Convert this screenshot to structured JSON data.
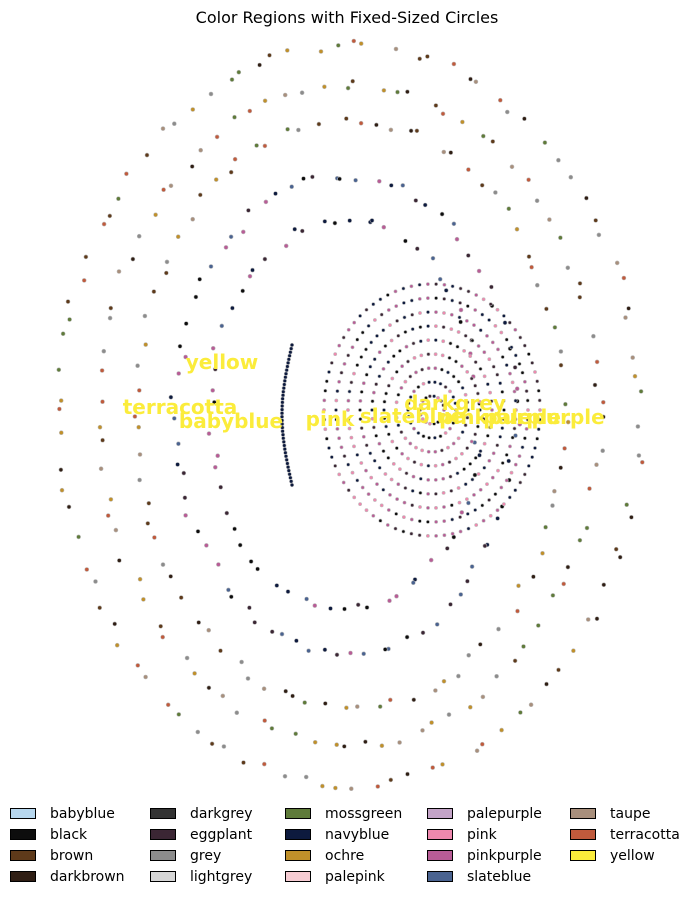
{
  "chart_data": {
    "type": "scatter",
    "title": "Color Regions with Fixed-Sized Circles",
    "xlabel": "",
    "ylabel": "",
    "axes_visible": false,
    "legend_location": "bottom",
    "region_labels": [
      {
        "text": "yellow"
      },
      {
        "text": "terracotta"
      },
      {
        "text": "babyblue"
      },
      {
        "text": "pink"
      },
      {
        "text": "slateblue"
      },
      {
        "text": "darkgrey"
      },
      {
        "text": "palepurple"
      },
      {
        "text": "pinkpurple"
      }
    ],
    "legend": [
      {
        "name": "babyblue",
        "color": "#b7d7ee"
      },
      {
        "name": "black",
        "color": "#0d0d0d"
      },
      {
        "name": "brown",
        "color": "#5e3a1a"
      },
      {
        "name": "darkbrown",
        "color": "#2f1e14"
      },
      {
        "name": "darkgrey",
        "color": "#333333"
      },
      {
        "name": "eggplant",
        "color": "#3b2634"
      },
      {
        "name": "grey",
        "color": "#8c8c8c"
      },
      {
        "name": "lightgrey",
        "color": "#d6d6d6"
      },
      {
        "name": "mossgreen",
        "color": "#5f7b3a"
      },
      {
        "name": "navyblue",
        "color": "#0d1a3e"
      },
      {
        "name": "ochre",
        "color": "#c0902a"
      },
      {
        "name": "palepink",
        "color": "#f6ccd3"
      },
      {
        "name": "palepurple",
        "color": "#c3a3c7"
      },
      {
        "name": "pink",
        "color": "#ee88ae"
      },
      {
        "name": "pinkpurple",
        "color": "#b85c96"
      },
      {
        "name": "slateblue",
        "color": "#4a6390"
      },
      {
        "name": "taupe",
        "color": "#a88f7c"
      },
      {
        "name": "terracotta",
        "color": "#c05a3c"
      },
      {
        "name": "yellow",
        "color": "#fbec3b"
      }
    ]
  }
}
